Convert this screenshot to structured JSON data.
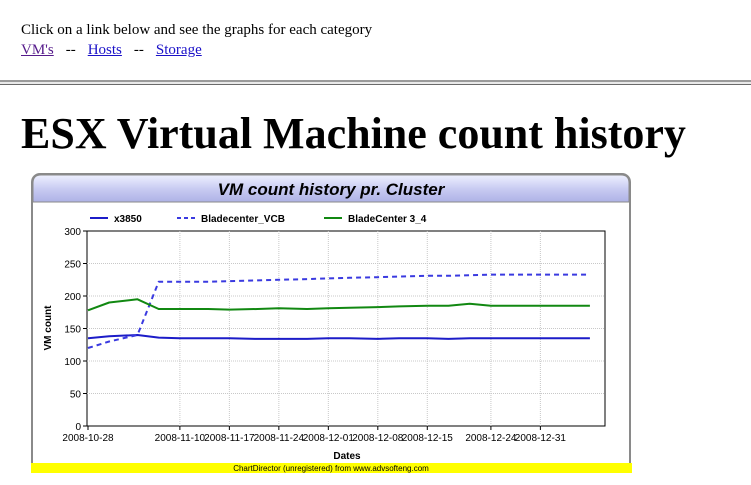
{
  "header": {
    "instruction": "Click on a link below and see the graphs for each category",
    "links": [
      "VM's",
      "Hosts",
      "Storage"
    ],
    "separator": "--"
  },
  "page_title": "ESX Virtual Machine count history",
  "chart_data": {
    "type": "line",
    "title": "VM count history pr. Cluster",
    "xlabel": "Dates",
    "ylabel": "VM count",
    "ylim": [
      0,
      300
    ],
    "yticks": [
      0,
      50,
      100,
      150,
      200,
      250,
      300
    ],
    "grid": true,
    "legend_position": "top",
    "x": [
      "2008-10-28",
      "2008-10-31",
      "2008-11-04",
      "2008-11-07",
      "2008-11-10",
      "2008-11-14",
      "2008-11-17",
      "2008-11-21",
      "2008-11-24",
      "2008-11-28",
      "2008-12-01",
      "2008-12-04",
      "2008-12-08",
      "2008-12-11",
      "2008-12-15",
      "2008-12-18",
      "2008-12-21",
      "2008-12-24",
      "2008-12-28",
      "2008-12-31",
      "2009-01-04",
      "2009-01-07"
    ],
    "xtick_labels": [
      "2008-10-28",
      "2008-11-10",
      "2008-11-17",
      "2008-11-24",
      "2008-12-01",
      "2008-12-08",
      "2008-12-15",
      "2008-12-24",
      "2008-12-31"
    ],
    "series": [
      {
        "name": "x3850",
        "color": "#1c1cc8",
        "style": "solid",
        "values": [
          135,
          138,
          140,
          136,
          135,
          135,
          135,
          134,
          134,
          134,
          135,
          135,
          134,
          135,
          135,
          134,
          135,
          135,
          135,
          135,
          135,
          135
        ]
      },
      {
        "name": "Bladecenter_VCB",
        "color": "#3a3ae0",
        "style": "dashed",
        "values": [
          120,
          130,
          140,
          222,
          222,
          222,
          223,
          224,
          225,
          226,
          227,
          228,
          229,
          230,
          231,
          231,
          232,
          233,
          233,
          233,
          233,
          233
        ]
      },
      {
        "name": "BladeCenter 3_4",
        "color": "#118811",
        "style": "solid",
        "values": [
          178,
          190,
          195,
          180,
          180,
          180,
          179,
          180,
          181,
          180,
          181,
          182,
          183,
          184,
          185,
          185,
          188,
          185,
          185,
          185,
          185,
          185
        ]
      }
    ],
    "footer": "ChartDirector (unregistered) from www.advsofteng.com"
  },
  "colors": {
    "link": "#1a10c8",
    "link_visited": "#551a8b",
    "footer_band": "#ffff00"
  }
}
